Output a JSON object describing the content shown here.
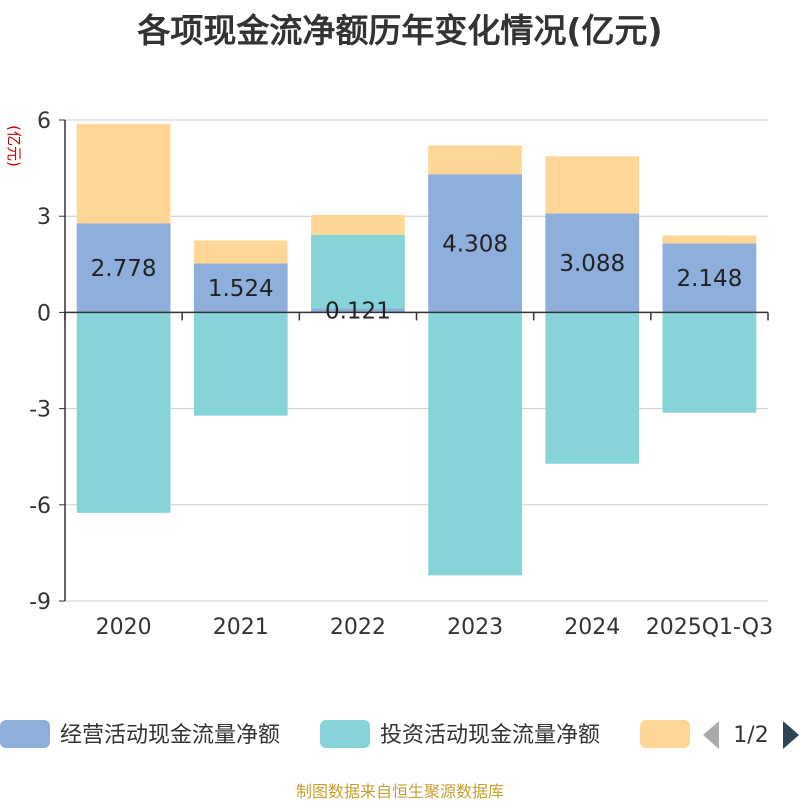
{
  "chart_data": {
    "type": "bar",
    "stacked": true,
    "title": "各项现金流净额历年变化情况(亿元)",
    "ylabel": "(亿元)",
    "xlabel": "",
    "ylim": [
      -9,
      6
    ],
    "yticks": [
      6,
      3,
      0,
      -3,
      -6,
      -9
    ],
    "categories": [
      "2020",
      "2021",
      "2022",
      "2023",
      "2024",
      "2025Q1-Q3"
    ],
    "series": [
      {
        "name": "经营活动现金流量净额",
        "color": "#8eaedb",
        "values": [
          2.778,
          1.524,
          0.121,
          4.308,
          3.088,
          2.148
        ]
      },
      {
        "name": "投资活动现金流量净额",
        "color": "#86d4d7",
        "values": [
          -6.25,
          -3.22,
          2.3,
          -8.2,
          -4.72,
          -3.13
        ]
      },
      {
        "name": "",
        "color": "#fed797",
        "values": [
          3.1,
          0.72,
          0.62,
          0.9,
          1.78,
          0.25
        ]
      }
    ],
    "data_labels": [
      "2.778",
      "1.524",
      "0.121",
      "4.308",
      "3.088",
      "2.148"
    ],
    "legend": {
      "position": "bottom",
      "page_indicator": "1/2"
    }
  },
  "source_note": "制图数据来自恒生聚源数据库"
}
